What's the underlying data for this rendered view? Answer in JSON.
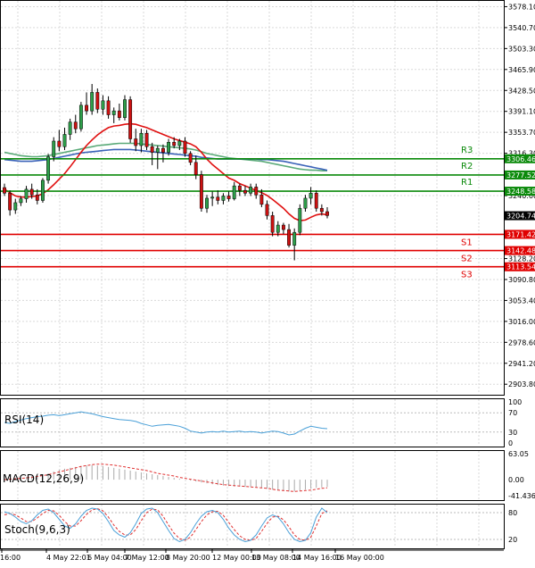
{
  "chart_data": {
    "type": "candlestick",
    "title": "",
    "colors": {
      "up": "#2e9e4a",
      "down": "#cc1111",
      "support": "#e00000",
      "resistance": "#0b8a0b",
      "ma_fast": "#e01010",
      "ma_slow_green": "#5aaa78",
      "ma_slow_blue": "#3a62b8",
      "rsi": "#4aa0d8",
      "macd_hist": "#aaaaaa",
      "macd_signal": "#e03030",
      "stoch_main": "#4aa0d8",
      "stoch_signal": "#e03030",
      "grid": "#d9d9d9",
      "price_box": "#000000"
    },
    "price_axis": {
      "range": [
        2885,
        3590
      ],
      "ticks": [
        "3578.10",
        "3540.70",
        "3503.30",
        "3465.90",
        "3428.50",
        "3391.10",
        "3353.70",
        "3316.30",
        "3240.60",
        "3128.20",
        "3090.80",
        "3053.40",
        "3016.00",
        "2978.60",
        "2941.20",
        "2903.80"
      ]
    },
    "time_labels": [
      "16:00",
      "4 May 22:01",
      "6 May 04:00",
      "7 May 12:00",
      "8 May 20:00",
      "12 May 00:00",
      "13 May 08:00",
      "14 May 16:00",
      "16 May 00:00"
    ],
    "levels": [
      {
        "name": "R3",
        "value": 3306.46,
        "kind": "resistance"
      },
      {
        "name": "R2",
        "value": 3277.52,
        "kind": "resistance"
      },
      {
        "name": "R1",
        "value": 3248.58,
        "kind": "resistance"
      },
      {
        "name": "S1",
        "value": 3171.42,
        "kind": "support"
      },
      {
        "name": "S2",
        "value": 3142.48,
        "kind": "support"
      },
      {
        "name": "S3",
        "value": 3113.54,
        "kind": "support"
      }
    ],
    "current_price": {
      "value": 3204.74,
      "label": "3204.74"
    },
    "candles": [
      {
        "o": 3255,
        "h": 3262,
        "l": 3240,
        "c": 3245
      },
      {
        "o": 3245,
        "h": 3250,
        "l": 3205,
        "c": 3215
      },
      {
        "o": 3215,
        "h": 3235,
        "l": 3208,
        "c": 3228
      },
      {
        "o": 3228,
        "h": 3240,
        "l": 3222,
        "c": 3235
      },
      {
        "o": 3235,
        "h": 3258,
        "l": 3228,
        "c": 3252
      },
      {
        "o": 3252,
        "h": 3262,
        "l": 3235,
        "c": 3242
      },
      {
        "o": 3242,
        "h": 3252,
        "l": 3225,
        "c": 3232
      },
      {
        "o": 3232,
        "h": 3272,
        "l": 3228,
        "c": 3268
      },
      {
        "o": 3268,
        "h": 3315,
        "l": 3262,
        "c": 3310
      },
      {
        "o": 3310,
        "h": 3345,
        "l": 3302,
        "c": 3338
      },
      {
        "o": 3338,
        "h": 3358,
        "l": 3320,
        "c": 3328
      },
      {
        "o": 3328,
        "h": 3362,
        "l": 3322,
        "c": 3350
      },
      {
        "o": 3350,
        "h": 3378,
        "l": 3340,
        "c": 3372
      },
      {
        "o": 3372,
        "h": 3385,
        "l": 3352,
        "c": 3360
      },
      {
        "o": 3360,
        "h": 3408,
        "l": 3355,
        "c": 3402
      },
      {
        "o": 3402,
        "h": 3425,
        "l": 3385,
        "c": 3392
      },
      {
        "o": 3392,
        "h": 3440,
        "l": 3385,
        "c": 3425
      },
      {
        "o": 3425,
        "h": 3432,
        "l": 3388,
        "c": 3395
      },
      {
        "o": 3395,
        "h": 3420,
        "l": 3385,
        "c": 3410
      },
      {
        "o": 3410,
        "h": 3418,
        "l": 3378,
        "c": 3385
      },
      {
        "o": 3385,
        "h": 3398,
        "l": 3370,
        "c": 3392
      },
      {
        "o": 3392,
        "h": 3405,
        "l": 3375,
        "c": 3380
      },
      {
        "o": 3380,
        "h": 3420,
        "l": 3375,
        "c": 3412
      },
      {
        "o": 3412,
        "h": 3418,
        "l": 3335,
        "c": 3342
      },
      {
        "o": 3342,
        "h": 3360,
        "l": 3320,
        "c": 3330
      },
      {
        "o": 3330,
        "h": 3360,
        "l": 3318,
        "c": 3352
      },
      {
        "o": 3352,
        "h": 3358,
        "l": 3322,
        "c": 3328
      },
      {
        "o": 3328,
        "h": 3335,
        "l": 3295,
        "c": 3318
      },
      {
        "o": 3318,
        "h": 3330,
        "l": 3288,
        "c": 3325
      },
      {
        "o": 3325,
        "h": 3332,
        "l": 3300,
        "c": 3318
      },
      {
        "o": 3318,
        "h": 3342,
        "l": 3312,
        "c": 3336
      },
      {
        "o": 3336,
        "h": 3345,
        "l": 3325,
        "c": 3330
      },
      {
        "o": 3330,
        "h": 3342,
        "l": 3322,
        "c": 3338
      },
      {
        "o": 3338,
        "h": 3345,
        "l": 3310,
        "c": 3316
      },
      {
        "o": 3316,
        "h": 3320,
        "l": 3295,
        "c": 3300
      },
      {
        "o": 3300,
        "h": 3312,
        "l": 3270,
        "c": 3278
      },
      {
        "o": 3278,
        "h": 3285,
        "l": 3212,
        "c": 3218
      },
      {
        "o": 3218,
        "h": 3242,
        "l": 3210,
        "c": 3236
      },
      {
        "o": 3236,
        "h": 3248,
        "l": 3222,
        "c": 3238
      },
      {
        "o": 3238,
        "h": 3250,
        "l": 3225,
        "c": 3232
      },
      {
        "o": 3232,
        "h": 3245,
        "l": 3225,
        "c": 3240
      },
      {
        "o": 3240,
        "h": 3248,
        "l": 3230,
        "c": 3235
      },
      {
        "o": 3235,
        "h": 3265,
        "l": 3232,
        "c": 3258
      },
      {
        "o": 3258,
        "h": 3262,
        "l": 3240,
        "c": 3250
      },
      {
        "o": 3250,
        "h": 3258,
        "l": 3240,
        "c": 3245
      },
      {
        "o": 3245,
        "h": 3262,
        "l": 3240,
        "c": 3256
      },
      {
        "o": 3256,
        "h": 3262,
        "l": 3235,
        "c": 3242
      },
      {
        "o": 3242,
        "h": 3252,
        "l": 3220,
        "c": 3225
      },
      {
        "o": 3225,
        "h": 3232,
        "l": 3198,
        "c": 3205
      },
      {
        "o": 3205,
        "h": 3212,
        "l": 3168,
        "c": 3175
      },
      {
        "o": 3175,
        "h": 3195,
        "l": 3168,
        "c": 3188
      },
      {
        "o": 3188,
        "h": 3192,
        "l": 3172,
        "c": 3180
      },
      {
        "o": 3180,
        "h": 3190,
        "l": 3148,
        "c": 3152
      },
      {
        "o": 3152,
        "h": 3182,
        "l": 3125,
        "c": 3175
      },
      {
        "o": 3175,
        "h": 3225,
        "l": 3170,
        "c": 3218
      },
      {
        "o": 3218,
        "h": 3242,
        "l": 3212,
        "c": 3236
      },
      {
        "o": 3236,
        "h": 3256,
        "l": 3225,
        "c": 3245
      },
      {
        "o": 3245,
        "h": 3250,
        "l": 3212,
        "c": 3218
      },
      {
        "o": 3218,
        "h": 3225,
        "l": 3205,
        "c": 3212
      },
      {
        "o": 3212,
        "h": 3220,
        "l": 3200,
        "c": 3205
      }
    ],
    "ma_fast": [
      3252,
      3246,
      3240,
      3238,
      3238,
      3239,
      3240,
      3244,
      3251,
      3260,
      3270,
      3280,
      3292,
      3305,
      3318,
      3330,
      3340,
      3349,
      3356,
      3362,
      3365,
      3366,
      3368,
      3369,
      3368,
      3365,
      3362,
      3358,
      3354,
      3350,
      3346,
      3342,
      3339,
      3336,
      3333,
      3328,
      3318,
      3306,
      3296,
      3288,
      3280,
      3272,
      3268,
      3262,
      3258,
      3254,
      3250,
      3246,
      3241,
      3234,
      3226,
      3218,
      3208,
      3200,
      3196,
      3197,
      3202,
      3206,
      3208,
      3206
    ],
    "ma_slow_green": [
      3318,
      3316,
      3314,
      3312,
      3311,
      3310,
      3310,
      3311,
      3312,
      3314,
      3316,
      3318,
      3320,
      3322,
      3324,
      3326,
      3328,
      3330,
      3331,
      3332,
      3333,
      3334,
      3334,
      3334,
      3334,
      3333,
      3332,
      3331,
      3330,
      3329,
      3328,
      3327,
      3326,
      3325,
      3324,
      3322,
      3319,
      3316,
      3314,
      3312,
      3310,
      3308,
      3307,
      3306,
      3305,
      3304,
      3303,
      3302,
      3300,
      3298,
      3296,
      3294,
      3292,
      3290,
      3288,
      3287,
      3286,
      3286,
      3285,
      3285
    ],
    "ma_slow_blue": [
      3305,
      3304,
      3303,
      3302,
      3302,
      3302,
      3303,
      3304,
      3305,
      3307,
      3309,
      3311,
      3313,
      3315,
      3317,
      3318,
      3319,
      3320,
      3321,
      3322,
      3323,
      3323,
      3323,
      3323,
      3322,
      3321,
      3320,
      3319,
      3318,
      3317,
      3316,
      3315,
      3314,
      3313,
      3312,
      3311,
      3309,
      3308,
      3307,
      3306,
      3306,
      3306,
      3306,
      3306,
      3306,
      3306,
      3306,
      3305,
      3305,
      3304,
      3303,
      3302,
      3300,
      3298,
      3296,
      3294,
      3292,
      3290,
      3288,
      3286
    ],
    "rsi": {
      "label": "RSI(14)",
      "range": [
        0,
        100
      ],
      "ticks": [
        "100",
        "70",
        "30",
        "0"
      ],
      "values": [
        50,
        48,
        52,
        55,
        58,
        60,
        62,
        63,
        65,
        66,
        64,
        66,
        68,
        70,
        72,
        70,
        68,
        65,
        62,
        60,
        58,
        56,
        55,
        54,
        52,
        48,
        45,
        42,
        44,
        45,
        46,
        44,
        42,
        38,
        32,
        30,
        28,
        30,
        31,
        30,
        32,
        30,
        31,
        32,
        30,
        31,
        30,
        28,
        30,
        32,
        31,
        28,
        24,
        26,
        32,
        38,
        42,
        40,
        38,
        37
      ]
    },
    "macd": {
      "label": "MACD(12,26,9)",
      "range": [
        -45,
        65
      ],
      "ticks": [
        "63.05",
        "0.00",
        "-41.436"
      ],
      "histogram": [
        2,
        3,
        4,
        5,
        6,
        8,
        10,
        12,
        14,
        18,
        22,
        24,
        26,
        28,
        30,
        31,
        32,
        31,
        30,
        28,
        26,
        24,
        22,
        20,
        18,
        16,
        14,
        12,
        10,
        8,
        6,
        4,
        2,
        0,
        -2,
        -4,
        -6,
        -8,
        -10,
        -12,
        -13,
        -14,
        -15,
        -15,
        -16,
        -16,
        -17,
        -18,
        -20,
        -22,
        -24,
        -25,
        -26,
        -26,
        -24,
        -22,
        -20,
        -18,
        -17,
        -16
      ],
      "signal": [
        0,
        1,
        2,
        3,
        4,
        5,
        7,
        9,
        11,
        14,
        17,
        20,
        23,
        26,
        29,
        31,
        33,
        34,
        34,
        33,
        32,
        30,
        28,
        26,
        24,
        22,
        20,
        17,
        14,
        12,
        10,
        8,
        5,
        3,
        1,
        -1,
        -3,
        -5,
        -7,
        -9,
        -11,
        -12,
        -13,
        -14,
        -15,
        -16,
        -17,
        -18,
        -19,
        -21,
        -23,
        -24,
        -25,
        -26,
        -25,
        -24,
        -23,
        -21,
        -19,
        -18
      ]
    },
    "stoch": {
      "label": "Stoch(9,6,3)",
      "range": [
        0,
        100
      ],
      "ticks": [
        "80",
        "20"
      ],
      "main": [
        82,
        78,
        70,
        60,
        55,
        62,
        75,
        85,
        88,
        80,
        65,
        50,
        45,
        55,
        72,
        85,
        90,
        88,
        78,
        60,
        40,
        30,
        25,
        35,
        55,
        78,
        88,
        90,
        80,
        60,
        40,
        22,
        15,
        20,
        35,
        55,
        72,
        82,
        85,
        80,
        65,
        45,
        30,
        20,
        15,
        18,
        30,
        50,
        68,
        75,
        70,
        55,
        35,
        20,
        15,
        18,
        35,
        70,
        90,
        80
      ],
      "signal": [
        75,
        78,
        75,
        68,
        60,
        60,
        68,
        78,
        85,
        84,
        74,
        60,
        50,
        50,
        62,
        76,
        86,
        89,
        84,
        70,
        52,
        38,
        30,
        30,
        42,
        62,
        80,
        88,
        86,
        72,
        52,
        34,
        22,
        18,
        25,
        42,
        60,
        75,
        82,
        83,
        74,
        58,
        42,
        28,
        20,
        18,
        22,
        38,
        56,
        70,
        72,
        64,
        48,
        30,
        20,
        18,
        25,
        50,
        78,
        84
      ]
    }
  }
}
